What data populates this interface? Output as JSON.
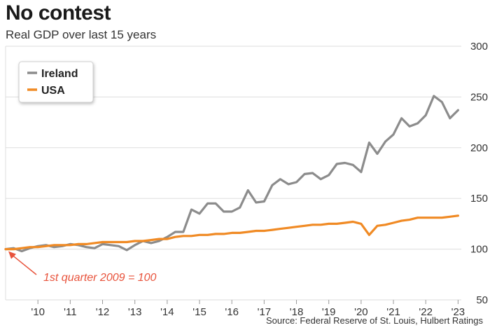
{
  "header": {
    "title": "No contest",
    "subtitle": "Real GDP over last 15 years"
  },
  "footer": {
    "source": "Source: Federal Reserve of St. Louis, Hulbert Ratings"
  },
  "colors": {
    "ireland": "#8c8c8c",
    "usa": "#f08a24",
    "grid": "#dddddd",
    "annotation": "#e8533c"
  },
  "chart_data": {
    "type": "line",
    "title": "No contest",
    "subtitle": "Real GDP over last 15 years",
    "xlabel": "",
    "ylabel": "",
    "ylim": [
      50,
      300
    ],
    "y_ticks": [
      300,
      250,
      200,
      150,
      100,
      50
    ],
    "y_axis_side": "right",
    "x_ticks": [
      {
        "label": "'10",
        "x": 2010
      },
      {
        "label": "'11",
        "x": 2011
      },
      {
        "label": "'12",
        "x": 2012
      },
      {
        "label": "'13",
        "x": 2013
      },
      {
        "label": "'14",
        "x": 2014
      },
      {
        "label": "'15",
        "x": 2015
      },
      {
        "label": "'16",
        "x": 2016
      },
      {
        "label": "'17",
        "x": 2017
      },
      {
        "label": "'18",
        "x": 2018
      },
      {
        "label": "'19",
        "x": 2019
      },
      {
        "label": "'20",
        "x": 2020
      },
      {
        "label": "'21",
        "x": 2021
      },
      {
        "label": "'22",
        "x": 2022
      },
      {
        "label": "'23",
        "x": 2023
      }
    ],
    "xlim": [
      2009.0,
      2023.1
    ],
    "grid": "horizontal",
    "legend_placement": "top-left",
    "annotation": {
      "text": "1st quarter 2009 = 100",
      "x": 2009.0,
      "y": 100
    },
    "series": [
      {
        "name": "Ireland",
        "points": [
          [
            2009.0,
            100
          ],
          [
            2009.25,
            101
          ],
          [
            2009.5,
            98
          ],
          [
            2009.75,
            101
          ],
          [
            2010.0,
            103
          ],
          [
            2010.25,
            104
          ],
          [
            2010.5,
            102
          ],
          [
            2010.75,
            103
          ],
          [
            2011.0,
            105
          ],
          [
            2011.25,
            104
          ],
          [
            2011.5,
            102
          ],
          [
            2011.75,
            101
          ],
          [
            2012.0,
            105
          ],
          [
            2012.25,
            104
          ],
          [
            2012.5,
            103
          ],
          [
            2012.75,
            99
          ],
          [
            2013.0,
            104
          ],
          [
            2013.25,
            108
          ],
          [
            2013.5,
            106
          ],
          [
            2013.75,
            108
          ],
          [
            2014.0,
            112
          ],
          [
            2014.25,
            117
          ],
          [
            2014.5,
            117
          ],
          [
            2014.75,
            139
          ],
          [
            2015.0,
            135
          ],
          [
            2015.25,
            145
          ],
          [
            2015.5,
            145
          ],
          [
            2015.75,
            137
          ],
          [
            2016.0,
            137
          ],
          [
            2016.25,
            141
          ],
          [
            2016.5,
            158
          ],
          [
            2016.75,
            146
          ],
          [
            2017.0,
            147
          ],
          [
            2017.25,
            163
          ],
          [
            2017.5,
            169
          ],
          [
            2017.75,
            164
          ],
          [
            2018.0,
            166
          ],
          [
            2018.25,
            174
          ],
          [
            2018.5,
            175
          ],
          [
            2018.75,
            169
          ],
          [
            2019.0,
            173
          ],
          [
            2019.25,
            184
          ],
          [
            2019.5,
            185
          ],
          [
            2019.75,
            183
          ],
          [
            2020.0,
            176
          ],
          [
            2020.25,
            205
          ],
          [
            2020.5,
            194
          ],
          [
            2020.75,
            206
          ],
          [
            2021.0,
            213
          ],
          [
            2021.25,
            229
          ],
          [
            2021.5,
            221
          ],
          [
            2021.75,
            224
          ],
          [
            2022.0,
            232
          ],
          [
            2022.25,
            251
          ],
          [
            2022.5,
            245
          ],
          [
            2022.75,
            229
          ],
          [
            2023.0,
            237
          ]
        ]
      },
      {
        "name": "USA",
        "points": [
          [
            2009.0,
            100
          ],
          [
            2009.25,
            100
          ],
          [
            2009.5,
            101
          ],
          [
            2009.75,
            102
          ],
          [
            2010.0,
            102
          ],
          [
            2010.25,
            103
          ],
          [
            2010.5,
            104
          ],
          [
            2010.75,
            104
          ],
          [
            2011.0,
            104
          ],
          [
            2011.25,
            105
          ],
          [
            2011.5,
            105
          ],
          [
            2011.75,
            106
          ],
          [
            2012.0,
            107
          ],
          [
            2012.25,
            107
          ],
          [
            2012.5,
            107
          ],
          [
            2012.75,
            107
          ],
          [
            2013.0,
            108
          ],
          [
            2013.25,
            108
          ],
          [
            2013.5,
            109
          ],
          [
            2013.75,
            110
          ],
          [
            2014.0,
            110
          ],
          [
            2014.25,
            112
          ],
          [
            2014.5,
            113
          ],
          [
            2014.75,
            113
          ],
          [
            2015.0,
            114
          ],
          [
            2015.25,
            114
          ],
          [
            2015.5,
            115
          ],
          [
            2015.75,
            115
          ],
          [
            2016.0,
            116
          ],
          [
            2016.25,
            116
          ],
          [
            2016.5,
            117
          ],
          [
            2016.75,
            118
          ],
          [
            2017.0,
            118
          ],
          [
            2017.25,
            119
          ],
          [
            2017.5,
            120
          ],
          [
            2017.75,
            121
          ],
          [
            2018.0,
            122
          ],
          [
            2018.25,
            123
          ],
          [
            2018.5,
            124
          ],
          [
            2018.75,
            124
          ],
          [
            2019.0,
            125
          ],
          [
            2019.25,
            125
          ],
          [
            2019.5,
            126
          ],
          [
            2019.75,
            127
          ],
          [
            2020.0,
            125
          ],
          [
            2020.25,
            114
          ],
          [
            2020.5,
            123
          ],
          [
            2020.75,
            124
          ],
          [
            2021.0,
            126
          ],
          [
            2021.25,
            128
          ],
          [
            2021.5,
            129
          ],
          [
            2021.75,
            131
          ],
          [
            2022.0,
            131
          ],
          [
            2022.25,
            131
          ],
          [
            2022.5,
            131
          ],
          [
            2022.75,
            132
          ],
          [
            2023.0,
            133
          ]
        ]
      }
    ]
  }
}
